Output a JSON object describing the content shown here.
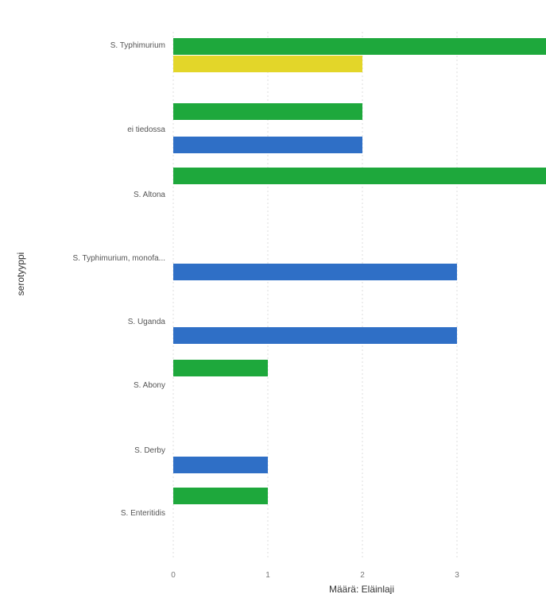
{
  "chart_data": {
    "type": "bar",
    "orientation": "horizontal",
    "title": "",
    "xlabel": "Määrä: Eläinlaji",
    "ylabel": "serotyyppi",
    "xlim": [
      0,
      4
    ],
    "xticks": [
      "0",
      "1",
      "2",
      "3"
    ],
    "grid": true,
    "categories": [
      "S. Typhimurium",
      "ei tiedossa",
      "S. Altona",
      "S. Typhimurium, monofa...",
      "S. Uganda",
      "S. Abony",
      "S. Derby",
      "S. Enteritidis"
    ],
    "series": [
      {
        "color": "#1ea83c",
        "values": [
          4,
          2,
          4,
          0,
          0,
          1,
          0,
          1
        ]
      },
      {
        "color": "#e3d629",
        "values": [
          2,
          0,
          0,
          0,
          0,
          0,
          0,
          0
        ]
      },
      {
        "color": "#2f6fc6",
        "values": [
          0,
          2,
          0,
          3,
          3,
          0,
          1,
          0
        ]
      }
    ]
  }
}
